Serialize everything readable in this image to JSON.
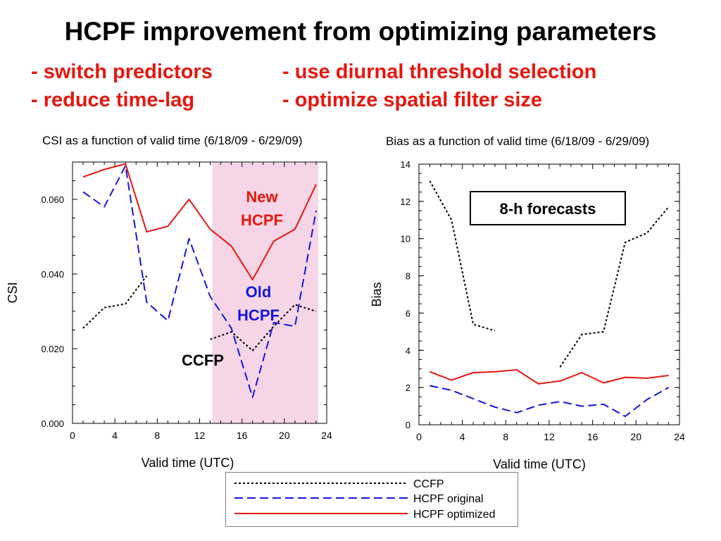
{
  "slide": {
    "title": "HCPF improvement from optimizing parameters",
    "bullets": {
      "b1": "- switch predictors",
      "b2": "- reduce time-lag",
      "b3": "- use diurnal threshold selection",
      "b4": "- optimize spatial filter size"
    }
  },
  "colors": {
    "ccfp": "#000000",
    "hcpf_original": "#1414e6",
    "hcpf_optimized": "#e8160e",
    "highlight": "#f5d5e6",
    "annotation_red": "#e8160e",
    "annotation_blue": "#1414e6"
  },
  "legend": {
    "ccfp": "CCFP",
    "hcpf_original": "HCPF original",
    "hcpf_optimized": "HCPF optimized"
  },
  "chart_data": [
    {
      "type": "line",
      "title": "CSI as a function of valid time (6/18/09 - 6/29/09)",
      "xlabel": "Valid time (UTC)",
      "ylabel": "CSI",
      "xlim": [
        0,
        24
      ],
      "ylim": [
        0,
        0.07
      ],
      "xticks": [
        "0",
        "4",
        "8",
        "12",
        "16",
        "20",
        "24"
      ],
      "yticks": [
        "0.000",
        "0.020",
        "0.040",
        "0.060"
      ],
      "highlight_x": [
        13.2,
        23.2
      ],
      "annotations": {
        "new_hcpf": "New\nHCPF",
        "old_hcpf": "Old\nHCPF",
        "ccfp": "CCFP"
      },
      "series": [
        {
          "name": "CCFP",
          "style": "dotted",
          "segments": [
            [
              [
                1,
                0.0255
              ],
              [
                3,
                0.031
              ],
              [
                5,
                0.032
              ],
              [
                7,
                0.0395
              ]
            ],
            [
              [
                13,
                0.0225
              ],
              [
                15,
                0.0245
              ],
              [
                17,
                0.0195
              ],
              [
                19,
                0.026
              ],
              [
                21,
                0.0318
              ],
              [
                23,
                0.03
              ]
            ]
          ]
        },
        {
          "name": "HCPF original",
          "style": "dashed",
          "segments": [
            [
              [
                1,
                0.062
              ],
              [
                3,
                0.058
              ],
              [
                5,
                0.069
              ],
              [
                7,
                0.0325
              ],
              [
                9,
                0.0275
              ],
              [
                11,
                0.0495
              ],
              [
                13,
                0.034
              ],
              [
                15,
                0.0255
              ],
              [
                17,
                0.007
              ],
              [
                19,
                0.027
              ],
              [
                21,
                0.026
              ],
              [
                23,
                0.057
              ]
            ]
          ]
        },
        {
          "name": "HCPF optimized",
          "style": "solid",
          "segments": [
            [
              [
                1,
                0.066
              ],
              [
                3,
                0.068
              ],
              [
                5,
                0.0695
              ],
              [
                7,
                0.0513
              ],
              [
                9,
                0.0528
              ],
              [
                11,
                0.06
              ],
              [
                13,
                0.052
              ],
              [
                15,
                0.0475
              ],
              [
                17,
                0.0385
              ],
              [
                19,
                0.0488
              ],
              [
                21,
                0.052
              ],
              [
                23,
                0.064
              ]
            ]
          ]
        }
      ]
    },
    {
      "type": "line",
      "title": "Bias as a function of valid time (6/18/09 - 6/29/09)",
      "xlabel": "Valid time (UTC)",
      "ylabel": "Bias",
      "xlim": [
        0,
        24
      ],
      "ylim": [
        0,
        14
      ],
      "xticks": [
        "0",
        "4",
        "8",
        "12",
        "16",
        "20",
        "24"
      ],
      "yticks": [
        "0",
        "2",
        "4",
        "6",
        "8",
        "10",
        "12",
        "14"
      ],
      "annotation_box": "8-h forecasts",
      "series": [
        {
          "name": "CCFP",
          "style": "dotted",
          "segments": [
            [
              [
                1,
                13.1
              ],
              [
                3,
                11.0
              ],
              [
                5,
                5.4
              ],
              [
                7,
                5.05
              ]
            ],
            [
              [
                13,
                3.1
              ],
              [
                15,
                4.85
              ],
              [
                17,
                5.0
              ],
              [
                19,
                9.8
              ],
              [
                21,
                10.3
              ],
              [
                23,
                11.7
              ]
            ]
          ]
        },
        {
          "name": "HCPF original",
          "style": "dashed",
          "segments": [
            [
              [
                1,
                2.1
              ],
              [
                3,
                1.85
              ],
              [
                5,
                1.4
              ],
              [
                7,
                0.95
              ],
              [
                9,
                0.65
              ],
              [
                11,
                1.05
              ],
              [
                13,
                1.25
              ],
              [
                15,
                1.0
              ],
              [
                17,
                1.1
              ],
              [
                19,
                0.45
              ],
              [
                21,
                1.35
              ],
              [
                23,
                2.0
              ]
            ]
          ]
        },
        {
          "name": "HCPF optimized",
          "style": "solid",
          "segments": [
            [
              [
                1,
                2.85
              ],
              [
                3,
                2.4
              ],
              [
                5,
                2.8
              ],
              [
                7,
                2.85
              ],
              [
                9,
                2.95
              ],
              [
                11,
                2.2
              ],
              [
                13,
                2.35
              ],
              [
                15,
                2.8
              ],
              [
                17,
                2.25
              ],
              [
                19,
                2.55
              ],
              [
                21,
                2.5
              ],
              [
                23,
                2.65
              ]
            ]
          ]
        }
      ]
    }
  ]
}
